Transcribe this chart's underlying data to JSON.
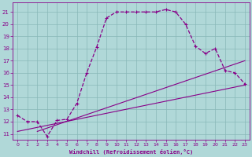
{
  "xlabel": "Windchill (Refroidissement éolien,°C)",
  "bg_color": "#b0d8d8",
  "grid_color": "#88b8b8",
  "line_color": "#880088",
  "xlim": [
    -0.5,
    23.5
  ],
  "ylim": [
    10.5,
    21.8
  ],
  "xticks": [
    0,
    1,
    2,
    3,
    4,
    5,
    6,
    7,
    8,
    9,
    10,
    11,
    12,
    13,
    14,
    15,
    16,
    17,
    18,
    19,
    20,
    21,
    22,
    23
  ],
  "yticks": [
    11,
    12,
    13,
    14,
    15,
    16,
    17,
    18,
    19,
    20,
    21
  ],
  "curve1_x": [
    0,
    1,
    2,
    3,
    4,
    5,
    6,
    7,
    8,
    9,
    10,
    11,
    12,
    13,
    14,
    15,
    16,
    17,
    18,
    19,
    20,
    21,
    22,
    23
  ],
  "curve1_y": [
    12.5,
    12.0,
    12.0,
    10.8,
    12.1,
    12.2,
    13.5,
    16.0,
    18.1,
    20.5,
    21.0,
    21.0,
    21.0,
    21.0,
    21.0,
    21.2,
    21.0,
    20.0,
    18.2,
    17.6,
    18.0,
    16.2,
    16.0,
    15.1
  ],
  "curve1_markers": [
    0,
    1,
    2,
    3,
    4,
    5,
    6,
    7,
    8,
    9,
    10,
    11,
    12,
    13,
    14,
    15,
    16,
    17,
    18,
    19,
    20,
    21,
    22,
    23
  ],
  "curve2_x": [
    0,
    23
  ],
  "curve2_y": [
    11.2,
    15.0
  ],
  "curve3_x": [
    2,
    23
  ],
  "curve3_y": [
    11.2,
    17.0
  ]
}
